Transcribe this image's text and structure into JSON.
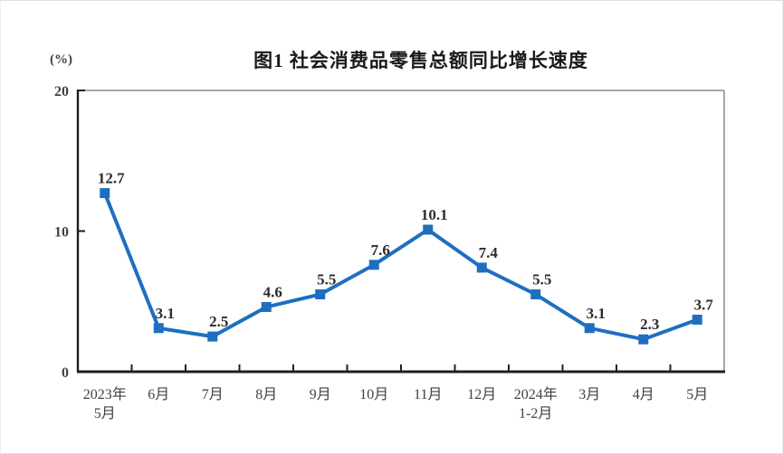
{
  "page": {
    "background": "#ffffff",
    "edge_border_color": "#dedede"
  },
  "chart_data": {
    "type": "line",
    "title": "图1  社会消费品零售总额同比增长速度",
    "unit_label": "(%)",
    "categories": [
      "2023年\n5月",
      "6月",
      "7月",
      "8月",
      "9月",
      "10月",
      "11月",
      "12月",
      "2024年\n1-2月",
      "3月",
      "4月",
      "5月"
    ],
    "values": [
      12.7,
      3.1,
      2.5,
      4.6,
      5.5,
      7.6,
      10.1,
      7.4,
      5.5,
      3.1,
      2.3,
      3.7
    ],
    "value_labels": [
      "12.7",
      "3.1",
      "2.5",
      "4.6",
      "5.5",
      "7.6",
      "10.1",
      "7.4",
      "5.5",
      "3.1",
      "2.3",
      "3.7"
    ],
    "y_ticks": [
      0,
      10,
      20
    ],
    "ylim": [
      0,
      20
    ],
    "xlabel": "",
    "ylabel": "(%)",
    "grid": false,
    "legend_position": "none",
    "marker": "square",
    "colors": {
      "line": "#1e6fc0",
      "marker": "#1e6fc0",
      "axis": "#1f1f1f",
      "plot_border": "#a6a6a6",
      "tick_label": "#3f3f46",
      "value_label": "#2f2b2b",
      "title": "#1a1a1a"
    }
  }
}
